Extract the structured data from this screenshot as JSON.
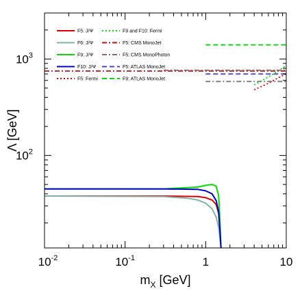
{
  "chart_data": {
    "type": "line",
    "title": "",
    "xlabel": {
      "main": "m",
      "sub": "X",
      "unit": " [GeV]"
    },
    "ylabel": "Λ [GeV]",
    "xscale": "log",
    "yscale": "log",
    "xlim": [
      0.01,
      10
    ],
    "ylim": [
      11,
      3000
    ],
    "x_ticks": [
      {
        "value": 0.01,
        "base": "10",
        "exp": "-2"
      },
      {
        "value": 0.1,
        "base": "10",
        "exp": "-1"
      },
      {
        "value": 1,
        "base": "1",
        "exp": ""
      },
      {
        "value": 10,
        "base": "10",
        "exp": ""
      }
    ],
    "y_ticks": [
      {
        "value": 100,
        "base": "10",
        "exp": "2"
      },
      {
        "value": 1000,
        "base": "10",
        "exp": "3"
      }
    ],
    "grid": false,
    "legend_position": "top-left",
    "series": [
      {
        "name": "F5: J/Ψ",
        "color": "#dd0000",
        "style": "solid",
        "x": [
          0.01,
          0.3,
          0.8,
          1.0,
          1.2,
          1.35,
          1.45,
          1.5,
          1.55
        ],
        "y": [
          38,
          38,
          37.5,
          36.5,
          34.5,
          31,
          25,
          17,
          11
        ]
      },
      {
        "name": "F6: J/Ψ",
        "color": "#7fb3a5",
        "style": "solid",
        "x": [
          0.01,
          0.3,
          0.6,
          0.8,
          1.0,
          1.2,
          1.35,
          1.45,
          1.5,
          1.55
        ],
        "y": [
          38,
          37.5,
          36,
          34.5,
          32,
          28,
          23,
          18,
          14,
          11
        ]
      },
      {
        "name": "F9: J/Ψ",
        "color": "#00e000",
        "style": "solid",
        "x": [
          0.01,
          0.3,
          0.8,
          1.0,
          1.2,
          1.35,
          1.45,
          1.5,
          1.55
        ],
        "y": [
          45,
          45,
          47,
          49,
          50,
          48,
          38,
          22,
          11
        ]
      },
      {
        "name": "F10: J/Ψ",
        "color": "#0000cc",
        "style": "solid",
        "x": [
          0.01,
          0.3,
          0.8,
          1.0,
          1.2,
          1.35,
          1.45,
          1.5,
          1.55
        ],
        "y": [
          45,
          45,
          44.5,
          43,
          40,
          34,
          26,
          17,
          11
        ]
      },
      {
        "name": "F5: Fermi",
        "color": "#dd0000",
        "style": "dotted",
        "x": [
          4.0,
          6.0,
          8.0,
          10.0
        ],
        "y": [
          480,
          560,
          640,
          700
        ]
      },
      {
        "name": "F9 and F10: Fermi",
        "color": "#00e000",
        "style": "dotted",
        "x": [
          4.0,
          6.0,
          8.0,
          10.0
        ],
        "y": [
          540,
          650,
          760,
          850
        ]
      },
      {
        "name": "F5: CMS MonoJet",
        "color": "#bb1111",
        "style": "dashdot",
        "x": [
          0.01,
          10.0
        ],
        "y": [
          750,
          750
        ]
      },
      {
        "name": "F5: CMS MonoPhoton",
        "color": "#996666",
        "style": "dashdot",
        "x": [
          0.3,
          10.0
        ],
        "y": [
          765,
          765
        ]
      },
      {
        "name": "F5: ATLAS MonoJet",
        "color": "#4444cc",
        "style": "dashed",
        "x": [
          1.0,
          10.0
        ],
        "y": [
          700,
          700
        ]
      },
      {
        "name": "F9: ATLAS MonoJet",
        "color": "#00e000",
        "style": "dashed",
        "x": [
          1.0,
          10.0
        ],
        "y": [
          1400,
          1400
        ]
      },
      {
        "name": "",
        "color": "#777777",
        "style": "dashdot",
        "x": [
          1.0,
          10.0
        ],
        "y": [
          585,
          585
        ]
      }
    ]
  }
}
